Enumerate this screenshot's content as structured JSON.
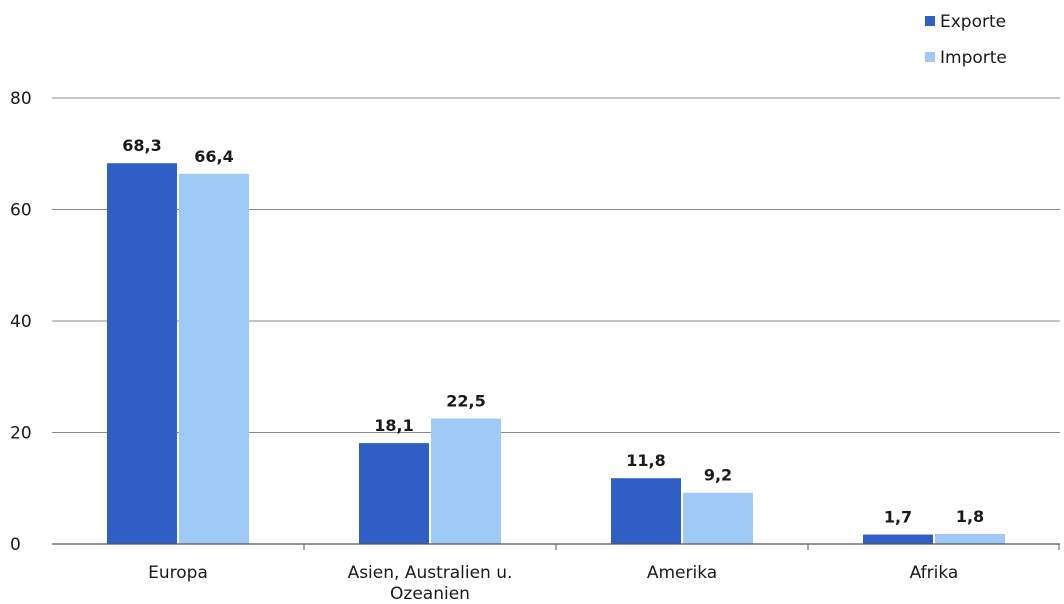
{
  "chart_data": {
    "type": "bar",
    "categories": [
      "Europa",
      "Asien, Australien u. Ozeanien",
      "Amerika",
      "Afrika"
    ],
    "category_label_lines": [
      [
        "Europa"
      ],
      [
        "Asien, Australien u.",
        "Ozeanien"
      ],
      [
        "Amerika"
      ],
      [
        "Afrika"
      ]
    ],
    "series": [
      {
        "name": "Exporte",
        "values": [
          68.3,
          18.1,
          11.8,
          1.7
        ],
        "labels": [
          "68,3",
          "18,1",
          "11,8",
          "1,7"
        ],
        "color": "#2f5fc4"
      },
      {
        "name": "Importe",
        "values": [
          66.4,
          22.5,
          9.2,
          1.8
        ],
        "labels": [
          "66,4",
          "22,5",
          "9,2",
          "1,8"
        ],
        "color": "#9fcaf6"
      }
    ],
    "ylim": [
      0,
      80
    ],
    "yticks": [
      0,
      20,
      40,
      60,
      80
    ],
    "title": "",
    "xlabel": "",
    "ylabel": "",
    "grid": true,
    "legend_position": "top-right"
  }
}
